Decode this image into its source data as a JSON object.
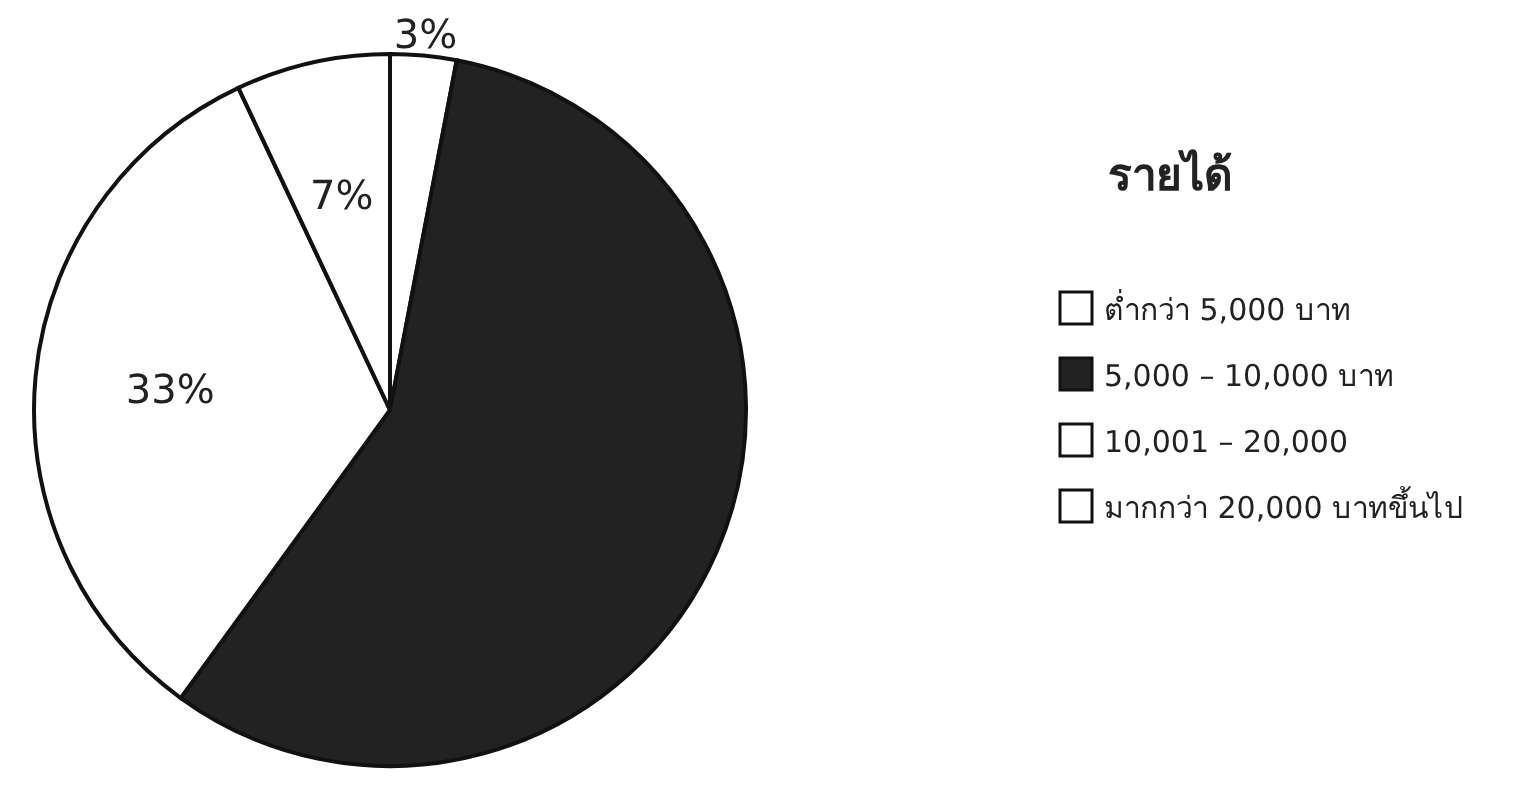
{
  "chart_data": {
    "type": "pie",
    "legend_title": "รายได้",
    "categories": [
      "ต่ำกว่า 5,000 บาท",
      "5,000 – 10,000 บาท",
      "10,001 – 20,000",
      "มากกว่า 20,000 บาทขึ้นไป"
    ],
    "values": [
      3,
      57,
      33,
      7
    ],
    "value_labels": [
      "3%",
      null,
      "33%",
      "7%"
    ],
    "colors": [
      "#ffffff",
      "#222222",
      "#ffffff",
      "#ffffff"
    ],
    "legend": "right"
  }
}
